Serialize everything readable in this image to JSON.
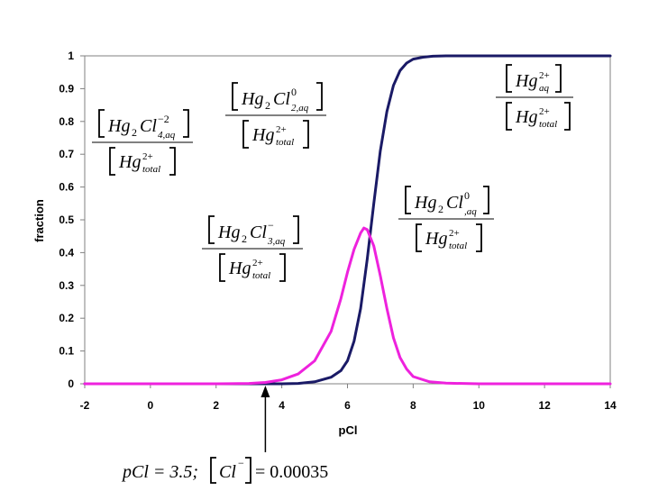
{
  "chart_data": {
    "type": "line",
    "xlabel": "pCl",
    "ylabel": "fraction",
    "xlim": [
      -2,
      14
    ],
    "ylim": [
      0,
      1
    ],
    "x_ticks": [
      "-2",
      "0",
      "2",
      "4",
      "6",
      "8",
      "10",
      "12",
      "14"
    ],
    "y_ticks": [
      "0",
      "0.1",
      "0.2",
      "0.3",
      "0.4",
      "0.5",
      "0.6",
      "0.7",
      "0.8",
      "0.9",
      "1"
    ],
    "grid": false,
    "series": [
      {
        "color": "#1a1a66",
        "x": [
          -2,
          3,
          4,
          4.5,
          5,
          5.5,
          5.8,
          6,
          6.2,
          6.4,
          6.6,
          6.8,
          7,
          7.2,
          7.4,
          7.6,
          7.8,
          8,
          8.3,
          8.6,
          9,
          9.5,
          14
        ],
        "y": [
          0,
          0,
          0,
          0.001,
          0.006,
          0.02,
          0.04,
          0.07,
          0.13,
          0.23,
          0.38,
          0.55,
          0.71,
          0.83,
          0.91,
          0.955,
          0.978,
          0.99,
          0.996,
          0.999,
          1,
          1,
          1
        ]
      },
      {
        "color": "#ee22dd",
        "x": [
          -2,
          2,
          3,
          3.5,
          4,
          4.5,
          5,
          5.5,
          5.8,
          6,
          6.2,
          6.4,
          6.5,
          6.6,
          6.8,
          7,
          7.2,
          7.4,
          7.6,
          7.8,
          8,
          8.5,
          9,
          10,
          14
        ],
        "y": [
          0,
          0,
          0.001,
          0.004,
          0.012,
          0.03,
          0.07,
          0.16,
          0.26,
          0.34,
          0.41,
          0.46,
          0.475,
          0.47,
          0.42,
          0.33,
          0.23,
          0.14,
          0.08,
          0.045,
          0.022,
          0.006,
          0.002,
          0,
          0
        ]
      }
    ],
    "annotation": {
      "pcl_text": "pCl = 3.5;",
      "cl_value": "= 0.00035",
      "arrow_x": 3.5
    }
  }
}
